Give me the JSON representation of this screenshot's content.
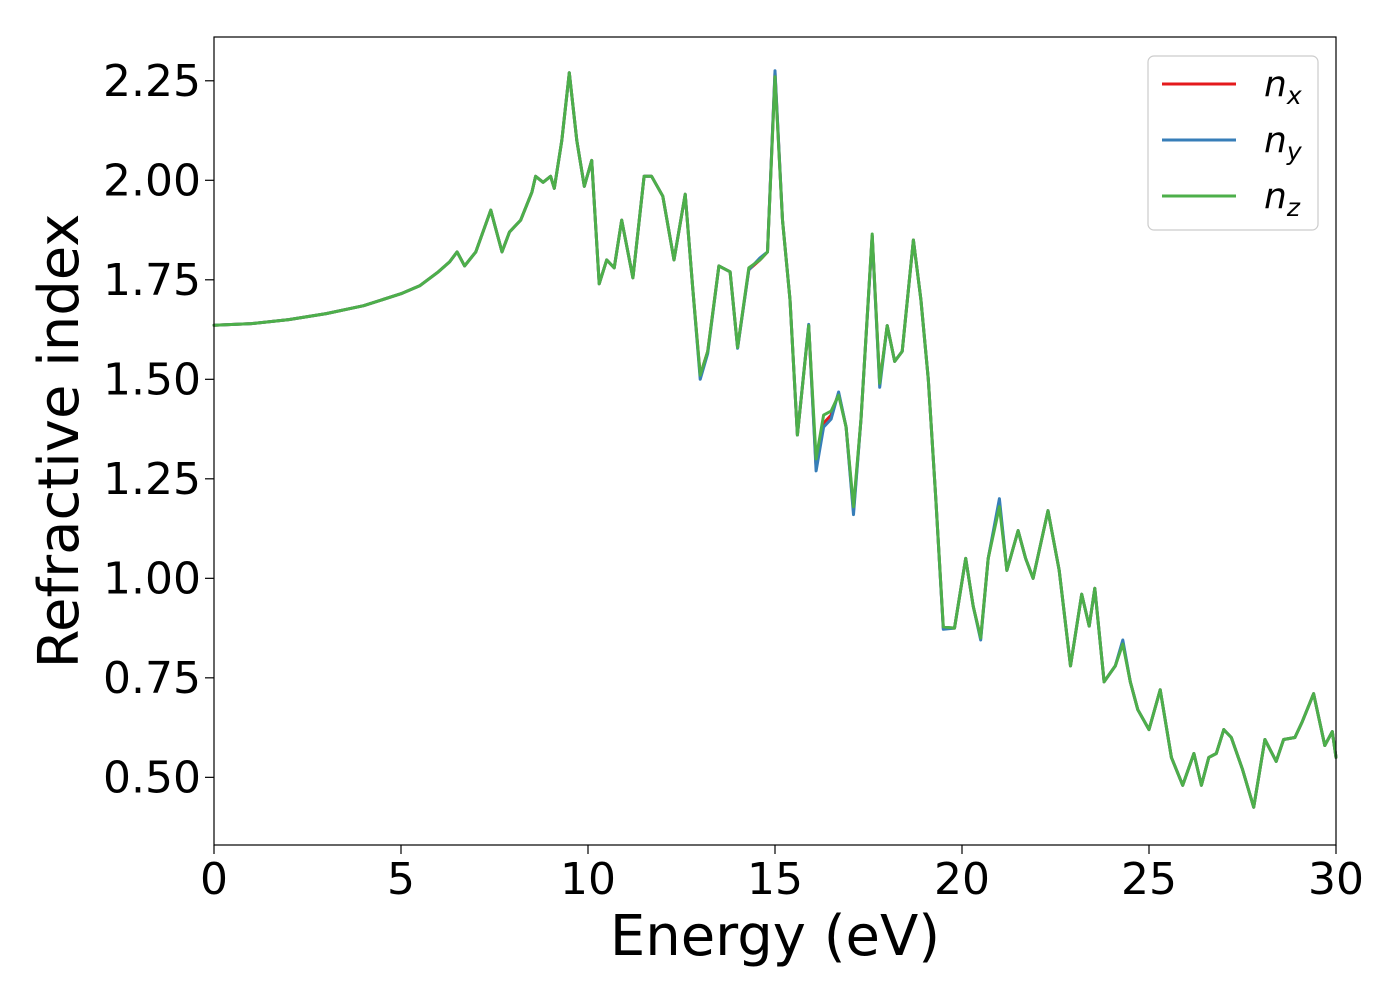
{
  "chart_data": {
    "type": "line",
    "title": "",
    "xlabel": "Energy (eV)",
    "ylabel": "Refractive index",
    "xlim": [
      0,
      30
    ],
    "ylim": [
      0.33,
      2.36
    ],
    "xticks": [
      0,
      5,
      10,
      15,
      20,
      25,
      30
    ],
    "xtick_labels": [
      "0",
      "5",
      "10",
      "15",
      "20",
      "25",
      "30"
    ],
    "yticks": [
      0.5,
      0.75,
      1.0,
      1.25,
      1.5,
      1.75,
      2.0,
      2.25
    ],
    "ytick_labels": [
      "0.50",
      "0.75",
      "1.00",
      "1.25",
      "1.50",
      "1.75",
      "2.00",
      "2.25"
    ],
    "grid": false,
    "legend_position": "top-right",
    "x": [
      0,
      1,
      2,
      3,
      4,
      5,
      5.5,
      6,
      6.3,
      6.5,
      6.7,
      7.0,
      7.4,
      7.5,
      7.7,
      7.9,
      8.2,
      8.5,
      8.6,
      8.8,
      9.0,
      9.1,
      9.3,
      9.5,
      9.7,
      9.9,
      10.1,
      10.3,
      10.5,
      10.7,
      10.9,
      11.2,
      11.5,
      11.7,
      12.0,
      12.3,
      12.6,
      12.8,
      13.0,
      13.2,
      13.5,
      13.8,
      14.0,
      14.3,
      14.6,
      14.8,
      15.0,
      15.2,
      15.4,
      15.6,
      15.9,
      16.1,
      16.3,
      16.5,
      16.7,
      16.9,
      17.1,
      17.3,
      17.6,
      17.8,
      18.0,
      18.2,
      18.4,
      18.7,
      18.9,
      19.1,
      19.3,
      19.5,
      19.8,
      20.1,
      20.3,
      20.5,
      20.7,
      21.0,
      21.2,
      21.5,
      21.7,
      21.9,
      22.3,
      22.6,
      22.9,
      23.2,
      23.4,
      23.55,
      23.8,
      24.1,
      24.3,
      24.5,
      24.7,
      25.0,
      25.3,
      25.6,
      25.9,
      26.2,
      26.4,
      26.6,
      26.8,
      27.0,
      27.2,
      27.5,
      27.8,
      28.1,
      28.4,
      28.6,
      28.9,
      29.1,
      29.4,
      29.7,
      29.9,
      30
    ],
    "series": [
      {
        "name": "x",
        "color": "#e41a1c",
        "values": [
          1.636,
          1.64,
          1.65,
          1.665,
          1.685,
          1.715,
          1.735,
          1.77,
          1.795,
          1.82,
          1.785,
          1.82,
          1.925,
          1.89,
          1.82,
          1.87,
          1.9,
          1.97,
          2.01,
          1.995,
          2.01,
          1.98,
          2.1,
          2.27,
          2.1,
          1.985,
          2.05,
          1.74,
          1.8,
          1.78,
          1.9,
          1.755,
          2.01,
          2.01,
          1.96,
          1.8,
          1.965,
          1.73,
          1.51,
          1.57,
          1.785,
          1.77,
          1.58,
          1.775,
          1.8,
          1.82,
          2.27,
          1.9,
          1.7,
          1.36,
          1.635,
          1.28,
          1.39,
          1.41,
          1.465,
          1.38,
          1.17,
          1.4,
          1.86,
          1.49,
          1.635,
          1.545,
          1.57,
          1.85,
          1.7,
          1.5,
          1.2,
          0.875,
          0.875,
          1.05,
          0.93,
          0.85,
          1.05,
          1.19,
          1.02,
          1.12,
          1.05,
          1.0,
          1.17,
          1.02,
          0.78,
          0.96,
          0.88,
          0.975,
          0.74,
          0.78,
          0.84,
          0.74,
          0.67,
          0.62,
          0.72,
          0.55,
          0.48,
          0.56,
          0.48,
          0.55,
          0.56,
          0.62,
          0.6,
          0.52,
          0.425,
          0.595,
          0.54,
          0.595,
          0.6,
          0.64,
          0.71,
          0.58,
          0.615,
          0.55
        ]
      },
      {
        "name": "y",
        "color": "#377eb8",
        "values": [
          1.636,
          1.64,
          1.65,
          1.665,
          1.685,
          1.715,
          1.735,
          1.77,
          1.795,
          1.82,
          1.785,
          1.82,
          1.925,
          1.89,
          1.82,
          1.87,
          1.9,
          1.97,
          2.01,
          1.995,
          2.01,
          1.98,
          2.1,
          2.27,
          2.1,
          1.985,
          2.05,
          1.74,
          1.8,
          1.78,
          1.9,
          1.755,
          2.01,
          2.01,
          1.96,
          1.8,
          1.965,
          1.73,
          1.5,
          1.565,
          1.785,
          1.77,
          1.578,
          1.775,
          1.805,
          1.82,
          2.275,
          1.9,
          1.7,
          1.36,
          1.638,
          1.27,
          1.38,
          1.4,
          1.468,
          1.38,
          1.16,
          1.4,
          1.86,
          1.48,
          1.635,
          1.545,
          1.57,
          1.85,
          1.7,
          1.5,
          1.2,
          0.872,
          0.875,
          1.05,
          0.93,
          0.845,
          1.05,
          1.2,
          1.02,
          1.12,
          1.05,
          1.0,
          1.17,
          1.02,
          0.78,
          0.96,
          0.88,
          0.975,
          0.74,
          0.78,
          0.845,
          0.74,
          0.67,
          0.62,
          0.72,
          0.55,
          0.48,
          0.56,
          0.48,
          0.55,
          0.56,
          0.62,
          0.6,
          0.52,
          0.425,
          0.595,
          0.54,
          0.595,
          0.6,
          0.64,
          0.71,
          0.58,
          0.615,
          0.55
        ]
      },
      {
        "name": "z",
        "color": "#4daf4a",
        "values": [
          1.636,
          1.64,
          1.65,
          1.665,
          1.685,
          1.715,
          1.735,
          1.77,
          1.795,
          1.82,
          1.785,
          1.82,
          1.925,
          1.89,
          1.82,
          1.87,
          1.9,
          1.97,
          2.01,
          1.995,
          2.01,
          1.98,
          2.1,
          2.27,
          2.1,
          1.985,
          2.05,
          1.74,
          1.8,
          1.78,
          1.9,
          1.755,
          2.01,
          2.01,
          1.96,
          1.8,
          1.965,
          1.73,
          1.51,
          1.57,
          1.785,
          1.77,
          1.58,
          1.78,
          1.8,
          1.82,
          2.26,
          1.9,
          1.7,
          1.36,
          1.635,
          1.3,
          1.41,
          1.42,
          1.46,
          1.38,
          1.18,
          1.4,
          1.865,
          1.49,
          1.635,
          1.545,
          1.57,
          1.85,
          1.7,
          1.5,
          1.2,
          0.878,
          0.875,
          1.05,
          0.93,
          0.85,
          1.05,
          1.18,
          1.02,
          1.12,
          1.05,
          1.0,
          1.17,
          1.02,
          0.78,
          0.96,
          0.88,
          0.975,
          0.74,
          0.78,
          0.835,
          0.74,
          0.67,
          0.62,
          0.72,
          0.55,
          0.48,
          0.56,
          0.48,
          0.55,
          0.56,
          0.62,
          0.6,
          0.52,
          0.425,
          0.595,
          0.54,
          0.595,
          0.6,
          0.64,
          0.71,
          0.58,
          0.615,
          0.55
        ]
      }
    ],
    "legend": [
      {
        "main": "n",
        "sub": "x"
      },
      {
        "main": "n",
        "sub": "y"
      },
      {
        "main": "n",
        "sub": "z"
      }
    ]
  }
}
